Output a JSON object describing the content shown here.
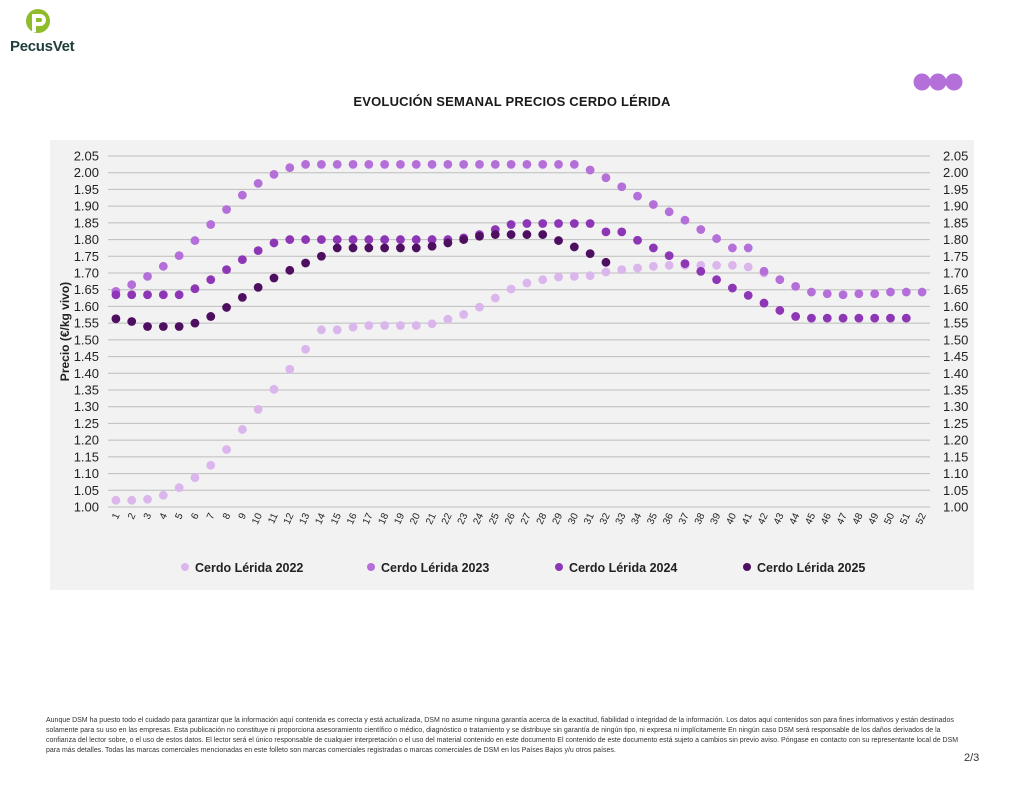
{
  "header": {
    "logo_text": "PecusVet",
    "logo_icon": "pecusvet-p-logo-icon",
    "brand_dots_icon": "brand-three-dots-icon"
  },
  "colors": {
    "2022": "#dbb6ec",
    "2023": "#b46fd9",
    "2024": "#8e37b6",
    "2025": "#4e0f60",
    "grid": "#bdbdbd",
    "panel": "#f2f2f2"
  },
  "chart_data": {
    "type": "scatter",
    "title": "EVOLUCIÓN SEMANAL PRECIOS CERDO LÉRIDA",
    "ylabel": "Precio (€/kg vivo)",
    "xlabel": "",
    "ylim": [
      1.0,
      2.05
    ],
    "y_ticks": [
      "2.05",
      "2.00",
      "1.95",
      "1.90",
      "1.85",
      "1.80",
      "1.75",
      "1.70",
      "1.65",
      "1.60",
      "1.55",
      "1.50",
      "1.45",
      "1.40",
      "1.35",
      "1.30",
      "1.25",
      "1.20",
      "1.15",
      "1.10",
      "1.05",
      "1.00"
    ],
    "x": [
      1,
      2,
      3,
      4,
      5,
      6,
      7,
      8,
      9,
      10,
      11,
      12,
      13,
      14,
      15,
      16,
      17,
      18,
      19,
      20,
      21,
      22,
      23,
      24,
      25,
      26,
      27,
      28,
      29,
      30,
      31,
      32,
      33,
      34,
      35,
      36,
      37,
      38,
      39,
      40,
      41,
      42,
      43,
      44,
      45,
      46,
      47,
      48,
      49,
      50,
      51,
      52
    ],
    "grid": true,
    "legend_position": "bottom",
    "secondary_y_axis": true,
    "series": [
      {
        "name": "Cerdo Lérida 2022",
        "color_key": "2022",
        "values": [
          1.02,
          1.02,
          1.023,
          1.035,
          1.058,
          1.088,
          1.125,
          1.172,
          1.232,
          1.292,
          1.352,
          1.412,
          1.472,
          1.53,
          1.53,
          1.538,
          1.543,
          1.543,
          1.543,
          1.543,
          1.548,
          1.562,
          1.576,
          1.598,
          1.625,
          1.652,
          1.67,
          1.68,
          1.688,
          1.69,
          1.692,
          1.703,
          1.71,
          1.715,
          1.72,
          1.723,
          1.723,
          1.723,
          1.723,
          1.723,
          1.718,
          1.7,
          null,
          null,
          null,
          null,
          null,
          null,
          null,
          null,
          null,
          null
        ]
      },
      {
        "name": "Cerdo Lérida 2023",
        "color_key": "2023",
        "values": [
          1.645,
          1.665,
          1.69,
          1.72,
          1.752,
          1.797,
          1.845,
          1.89,
          1.933,
          1.968,
          1.995,
          2.015,
          2.025,
          2.025,
          2.025,
          2.025,
          2.025,
          2.025,
          2.025,
          2.025,
          2.025,
          2.025,
          2.025,
          2.025,
          2.025,
          2.025,
          2.025,
          2.025,
          2.025,
          2.025,
          2.008,
          1.985,
          1.958,
          1.93,
          1.905,
          1.883,
          1.858,
          1.83,
          1.803,
          1.775,
          1.775,
          1.705,
          1.68,
          1.66,
          1.643,
          1.638,
          1.635,
          1.638,
          1.638,
          1.643,
          1.643,
          1.643
        ]
      },
      {
        "name": "Cerdo Lérida 2024",
        "color_key": "2024",
        "values": [
          1.635,
          1.635,
          1.635,
          1.635,
          1.635,
          1.653,
          1.68,
          1.71,
          1.74,
          1.767,
          1.79,
          1.8,
          1.8,
          1.8,
          1.8,
          1.8,
          1.8,
          1.8,
          1.8,
          1.8,
          1.8,
          1.8,
          1.805,
          1.815,
          1.83,
          1.845,
          1.848,
          1.848,
          1.848,
          1.848,
          1.848,
          1.823,
          1.823,
          1.798,
          1.775,
          1.752,
          1.728,
          1.705,
          1.68,
          1.655,
          1.633,
          1.61,
          1.588,
          1.57,
          1.565,
          1.565,
          1.565,
          1.565,
          1.565,
          1.565,
          1.565,
          null
        ]
      },
      {
        "name": "Cerdo Lérida 2025",
        "color_key": "2025",
        "values": [
          1.563,
          1.555,
          1.54,
          1.54,
          1.54,
          1.55,
          1.57,
          1.597,
          1.627,
          1.657,
          1.685,
          1.708,
          1.73,
          1.75,
          1.775,
          1.775,
          1.775,
          1.775,
          1.775,
          1.775,
          1.78,
          1.79,
          1.8,
          1.81,
          1.815,
          1.815,
          1.815,
          1.815,
          1.797,
          1.778,
          1.758,
          1.732,
          null,
          null,
          null,
          null,
          null,
          null,
          null,
          null,
          null,
          null,
          null,
          null,
          null,
          null,
          null,
          null,
          null,
          null,
          null,
          null
        ]
      }
    ]
  },
  "footer": {
    "disclaimer": "Aunque DSM ha puesto todo el cuidado para garantizar que la información aquí contenida es correcta y está actualizada, DSM no asume ninguna garantía acerca de la exactitud, fiabilidad o integridad de la información. Los datos aquí contenidos son para fines informativos y están destinados solamente para su uso en las empresas. Esta publicación no constituye ni proporciona asesoramiento científico o médico, diagnóstico o tratamiento y se distribuye sin garantía de ningún tipo, ni expresa ni implícitamente En ningún caso DSM será responsable de los daños derivados de la confianza del lector sobre, o el uso de estos datos. El lector será el único responsable de cualquier interpretación o el uso del material contenido en este documento El contenido de este documento está sujeto a cambios sin previo aviso. Póngase en contacto con su representante local de DSM para más detalles. Todas las marcas comerciales mencionadas en este folleto son marcas comerciales registradas o marcas comerciales de DSM en los Países Bajos y/u otros países.",
    "page_number": "2/3"
  }
}
